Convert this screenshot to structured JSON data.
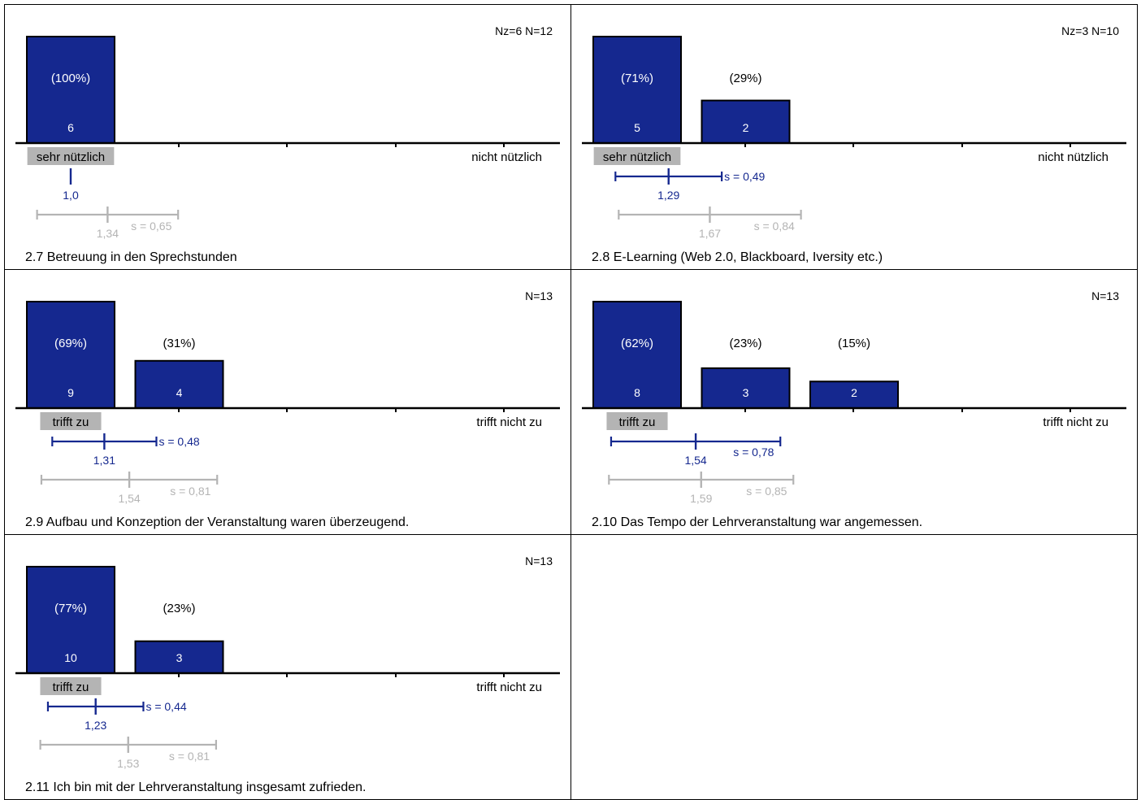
{
  "colors": {
    "bar": "#15288f",
    "bar_border": "#000000",
    "mean_course": "#15288f",
    "mean_reference": "#b4b4b4",
    "left_label_bg": "#b4b4b4",
    "text": "#000000",
    "bar_text": "#ffffff"
  },
  "chart_data": [
    {
      "type": "bar",
      "id": "2.7",
      "title": "2.7 Betreuung in den Sprechstunden",
      "counts_label": "Nz=6  N=12",
      "left_label": "sehr nützlich",
      "right_label": "nicht nützlich",
      "categories": [
        1,
        2,
        3,
        4,
        5
      ],
      "values": [
        6,
        0,
        0,
        0,
        0
      ],
      "percent_labels": [
        "(100%)",
        "",
        "",
        "",
        ""
      ],
      "value_labels": [
        "6",
        "",
        "",
        "",
        ""
      ],
      "ylim": [
        0,
        6
      ],
      "course_stat": {
        "mean": 1.0,
        "sd": 0.0,
        "mean_label": "1,0",
        "sd_label": ""
      },
      "reference_stat": {
        "mean": 1.34,
        "sd": 0.65,
        "mean_label": "1,34",
        "sd_label": "s = 0,65"
      }
    },
    {
      "type": "bar",
      "id": "2.8",
      "title": "2.8 E-Learning (Web 2.0, Blackboard, Iversity etc.)",
      "counts_label": "Nz=3  N=10",
      "left_label": "sehr nützlich",
      "right_label": "nicht nützlich",
      "categories": [
        1,
        2,
        3,
        4,
        5
      ],
      "values": [
        5,
        2,
        0,
        0,
        0
      ],
      "percent_labels": [
        "(71%)",
        "(29%)",
        "",
        "",
        ""
      ],
      "value_labels": [
        "5",
        "2",
        "",
        "",
        ""
      ],
      "ylim": [
        0,
        5
      ],
      "course_stat": {
        "mean": 1.29,
        "sd": 0.49,
        "mean_label": "1,29",
        "sd_label": "s = 0,49"
      },
      "reference_stat": {
        "mean": 1.67,
        "sd": 0.84,
        "mean_label": "1,67",
        "sd_label": "s = 0,84"
      }
    },
    {
      "type": "bar",
      "id": "2.9",
      "title": "2.9 Aufbau und Konzeption der Veranstaltung waren überzeugend.",
      "counts_label": "N=13",
      "left_label": "trifft zu",
      "right_label": "trifft nicht zu",
      "categories": [
        1,
        2,
        3,
        4,
        5
      ],
      "values": [
        9,
        4,
        0,
        0,
        0
      ],
      "percent_labels": [
        "(69%)",
        "(31%)",
        "",
        "",
        ""
      ],
      "value_labels": [
        "9",
        "4",
        "",
        "",
        ""
      ],
      "ylim": [
        0,
        9
      ],
      "course_stat": {
        "mean": 1.31,
        "sd": 0.48,
        "mean_label": "1,31",
        "sd_label": "s = 0,48"
      },
      "reference_stat": {
        "mean": 1.54,
        "sd": 0.81,
        "mean_label": "1,54",
        "sd_label": "s = 0,81"
      }
    },
    {
      "type": "bar",
      "id": "2.10",
      "title": "2.10 Das Tempo der Lehrveranstaltung war angemessen.",
      "counts_label": "N=13",
      "left_label": "trifft zu",
      "right_label": "trifft nicht zu",
      "categories": [
        1,
        2,
        3,
        4,
        5
      ],
      "values": [
        8,
        3,
        2,
        0,
        0
      ],
      "percent_labels": [
        "(62%)",
        "(23%)",
        "(15%)",
        "",
        ""
      ],
      "value_labels": [
        "8",
        "3",
        "2",
        "",
        ""
      ],
      "ylim": [
        0,
        8
      ],
      "course_stat": {
        "mean": 1.54,
        "sd": 0.78,
        "mean_label": "1,54",
        "sd_label": "s = 0,78"
      },
      "reference_stat": {
        "mean": 1.59,
        "sd": 0.85,
        "mean_label": "1,59",
        "sd_label": "s = 0,85"
      }
    },
    {
      "type": "bar",
      "id": "2.11",
      "title": "2.11 Ich bin mit der Lehrveranstaltung insgesamt zufrieden.",
      "counts_label": "N=13",
      "left_label": "trifft zu",
      "right_label": "trifft nicht zu",
      "categories": [
        1,
        2,
        3,
        4,
        5
      ],
      "values": [
        10,
        3,
        0,
        0,
        0
      ],
      "percent_labels": [
        "(77%)",
        "(23%)",
        "",
        "",
        ""
      ],
      "value_labels": [
        "10",
        "3",
        "",
        "",
        ""
      ],
      "ylim": [
        0,
        10
      ],
      "course_stat": {
        "mean": 1.23,
        "sd": 0.44,
        "mean_label": "1,23",
        "sd_label": "s = 0,44"
      },
      "reference_stat": {
        "mean": 1.53,
        "sd": 0.81,
        "mean_label": "1,53",
        "sd_label": "s = 0,81"
      }
    }
  ]
}
